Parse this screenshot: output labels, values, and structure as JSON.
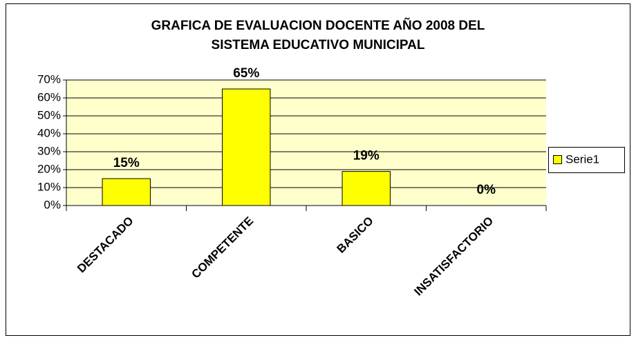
{
  "chart_data": {
    "type": "bar",
    "title": [
      "GRAFICA DE EVALUACION DOCENTE AÑO 2008 DEL",
      "SISTEMA EDUCATIVO MUNICIPAL"
    ],
    "categories": [
      "DESTACADO",
      "COMPETENTE",
      "BASICO",
      "INSATISFACTORIO"
    ],
    "series": [
      {
        "name": "Serie1",
        "color": "#ffff00",
        "values": [
          15,
          65,
          19,
          0
        ],
        "value_labels": [
          "15%",
          "65%",
          "19%",
          "0%"
        ]
      }
    ],
    "ylim": [
      0,
      70
    ],
    "yticks": [
      {
        "value": 0,
        "label": "0%"
      },
      {
        "value": 10,
        "label": "10%"
      },
      {
        "value": 20,
        "label": "20%"
      },
      {
        "value": 30,
        "label": "30%"
      },
      {
        "value": 40,
        "label": "40%"
      },
      {
        "value": 50,
        "label": "50%"
      },
      {
        "value": 60,
        "label": "60%"
      },
      {
        "value": 70,
        "label": "70%"
      }
    ],
    "grid": true,
    "legend": "right"
  }
}
